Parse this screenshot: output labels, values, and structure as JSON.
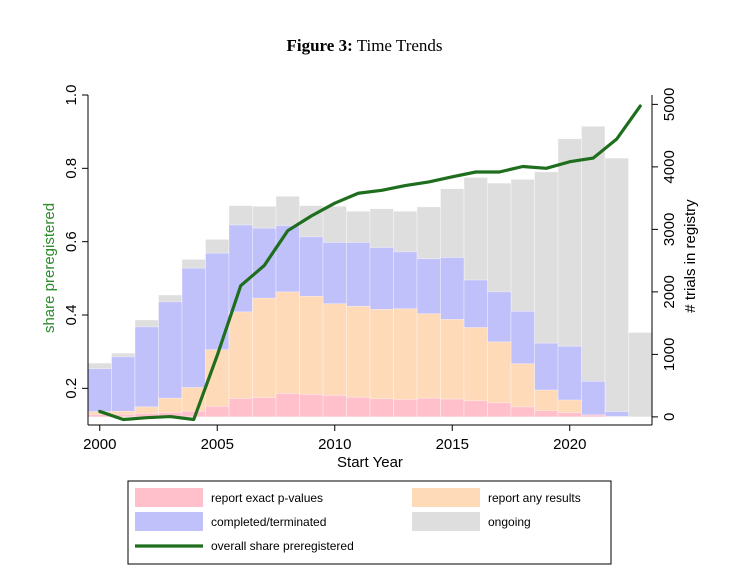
{
  "figure": {
    "label": "Figure 3:",
    "title": "Time Trends"
  },
  "chart_data": {
    "type": "bar",
    "subtype": "stacked bar + line (dual axis)",
    "x": [
      2000,
      2001,
      2002,
      2003,
      2004,
      2005,
      2006,
      2007,
      2008,
      2009,
      2010,
      2011,
      2012,
      2013,
      2014,
      2015,
      2016,
      2017,
      2018,
      2019,
      2020,
      2021,
      2022,
      2023
    ],
    "xlabel": "Start Year",
    "xticks": [
      2000,
      2005,
      2010,
      2015,
      2020
    ],
    "xlim": [
      1999.5,
      2023.5
    ],
    "ylabel_left": "share preregistered",
    "ylim_left": [
      0.1,
      1.0
    ],
    "yticks_left": [
      "0.2",
      "0.4",
      "0.6",
      "0.8",
      "1.0"
    ],
    "ylabel_right": "# trials in registry",
    "ylim_right": [
      -130,
      5150
    ],
    "yticks_right": [
      "0",
      "1000",
      "2000",
      "3000",
      "4000",
      "5000"
    ],
    "grid": false,
    "legend_position": "bottom",
    "series": [
      {
        "name": "report exact p-values",
        "kind": "bar",
        "axis": "right",
        "color": "#ffc0cb",
        "values": [
          40,
          40,
          55,
          70,
          90,
          170,
          295,
          310,
          375,
          360,
          345,
          315,
          290,
          280,
          300,
          285,
          260,
          225,
          160,
          100,
          70,
          30,
          5,
          0
        ]
      },
      {
        "name": "report any results",
        "kind": "bar",
        "axis": "right",
        "color": "#ffdab8",
        "values": [
          85,
          90,
          160,
          300,
          470,
          1075,
          1680,
          1900,
          2000,
          1930,
          1810,
          1770,
          1720,
          1730,
          1650,
          1560,
          1430,
          1200,
          850,
          430,
          270,
          30,
          5,
          0
        ]
      },
      {
        "name": "completed/terminated",
        "kind": "bar",
        "axis": "right",
        "color": "#c0c0fb",
        "values": [
          770,
          960,
          1440,
          1840,
          2380,
          2620,
          3070,
          3020,
          3060,
          2880,
          2790,
          2790,
          2710,
          2640,
          2530,
          2550,
          2190,
          2000,
          1690,
          1180,
          1130,
          570,
          85,
          0
        ]
      },
      {
        "name": "ongoing",
        "kind": "bar",
        "axis": "right",
        "color": "#dedede",
        "values": [
          860,
          1020,
          1550,
          1950,
          2520,
          2840,
          3380,
          3370,
          3530,
          3380,
          3370,
          3290,
          3330,
          3290,
          3360,
          3650,
          3830,
          3740,
          3800,
          3920,
          4450,
          4650,
          4140,
          1350
        ]
      },
      {
        "name": "overall share preregistered",
        "kind": "line",
        "axis": "left",
        "color": "#1e6e1e",
        "values": [
          0.137,
          0.115,
          0.12,
          0.123,
          0.115,
          0.29,
          0.48,
          0.535,
          0.63,
          0.67,
          0.705,
          0.732,
          0.74,
          0.753,
          0.763,
          0.777,
          0.79,
          0.79,
          0.805,
          0.8,
          0.818,
          0.828,
          0.88,
          0.97
        ]
      }
    ]
  }
}
